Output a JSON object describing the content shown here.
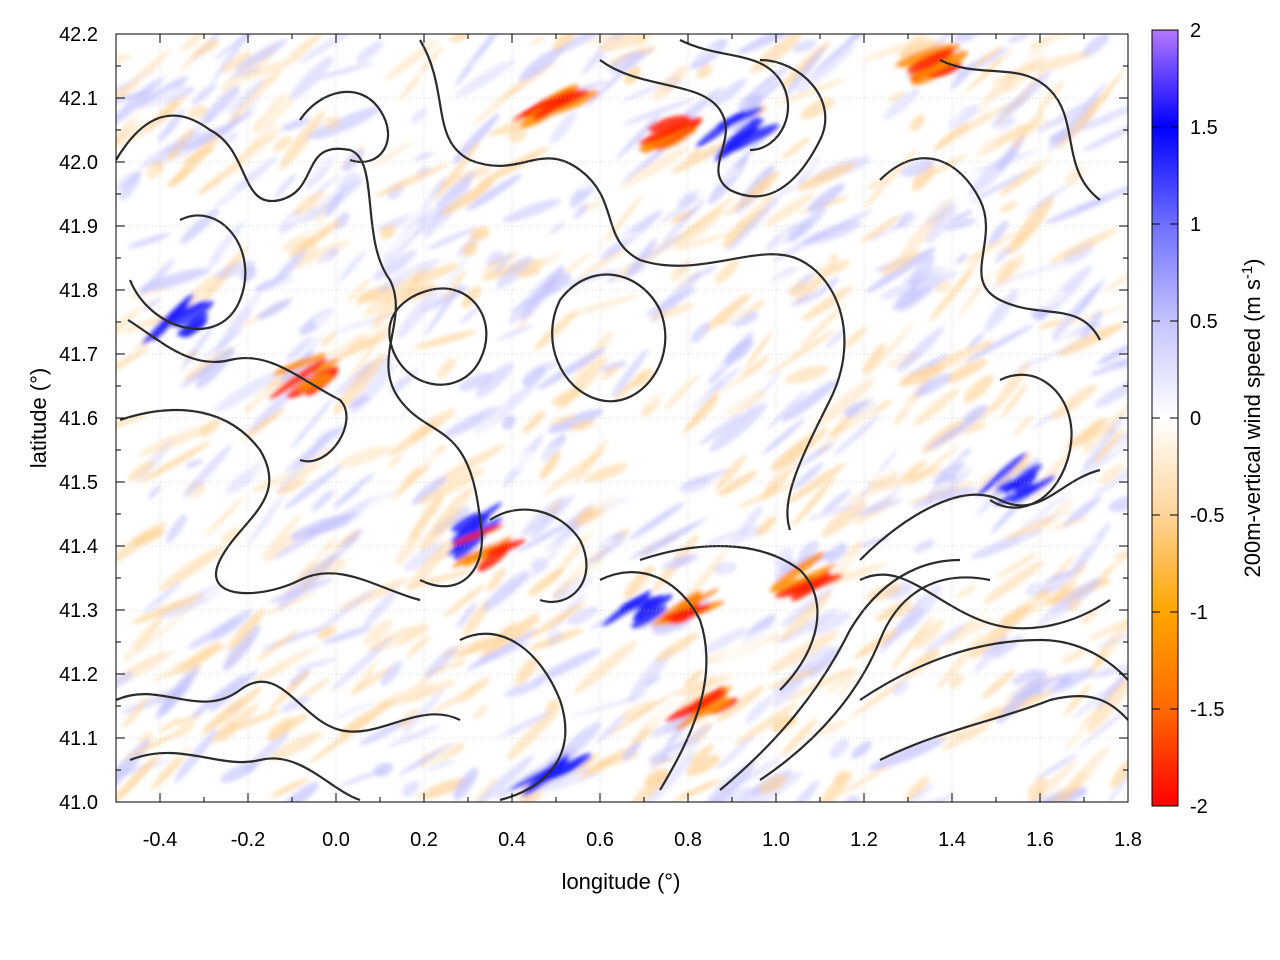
{
  "chart_data": {
    "type": "heatmap",
    "xlabel": "longitude (°)",
    "ylabel": "latitude (°)",
    "xlim": [
      -0.5,
      1.8
    ],
    "ylim": [
      41.0,
      42.2
    ],
    "xticks": [
      "-0.4",
      "-0.2",
      "0.0",
      "0.2",
      "0.4",
      "0.6",
      "0.8",
      "1.0",
      "1.2",
      "1.4",
      "1.6",
      "1.8"
    ],
    "yticks": [
      "41.0",
      "41.1",
      "41.2",
      "41.3",
      "41.4",
      "41.5",
      "41.6",
      "41.7",
      "41.8",
      "41.9",
      "42.0",
      "42.1",
      "42.2"
    ],
    "colorbar": {
      "label": "200m-vertical wind speed (m s-1)",
      "range": [
        -2,
        2
      ],
      "ticks": [
        "2",
        "1.5",
        "1",
        "0.5",
        "0",
        "-0.5",
        "-1",
        "-1.5",
        "-2"
      ],
      "palette": [
        "#ff0000",
        "#ff6a00",
        "#ffa500",
        "#ffd49a",
        "#ffffff",
        "#c4c4ff",
        "#6e6eff",
        "#0000ff",
        "#b478ff"
      ]
    },
    "grid": true,
    "overlay": "terrain contour lines (dark gray)",
    "features": {
      "strong_updraft_lon_lat": [
        [
          0.33,
          41.42
        ],
        [
          0.9,
          42.05
        ],
        [
          0.7,
          41.3
        ],
        [
          1.55,
          41.5
        ],
        [
          -0.35,
          41.75
        ],
        [
          0.5,
          41.05
        ]
      ],
      "strong_downdraft_lon_lat": [
        [
          0.8,
          41.3
        ],
        [
          0.75,
          42.05
        ],
        [
          0.35,
          41.4
        ],
        [
          1.35,
          42.15
        ],
        [
          -0.05,
          41.67
        ],
        [
          1.05,
          41.35
        ],
        [
          0.85,
          41.15
        ],
        [
          0.5,
          42.08
        ]
      ]
    }
  }
}
